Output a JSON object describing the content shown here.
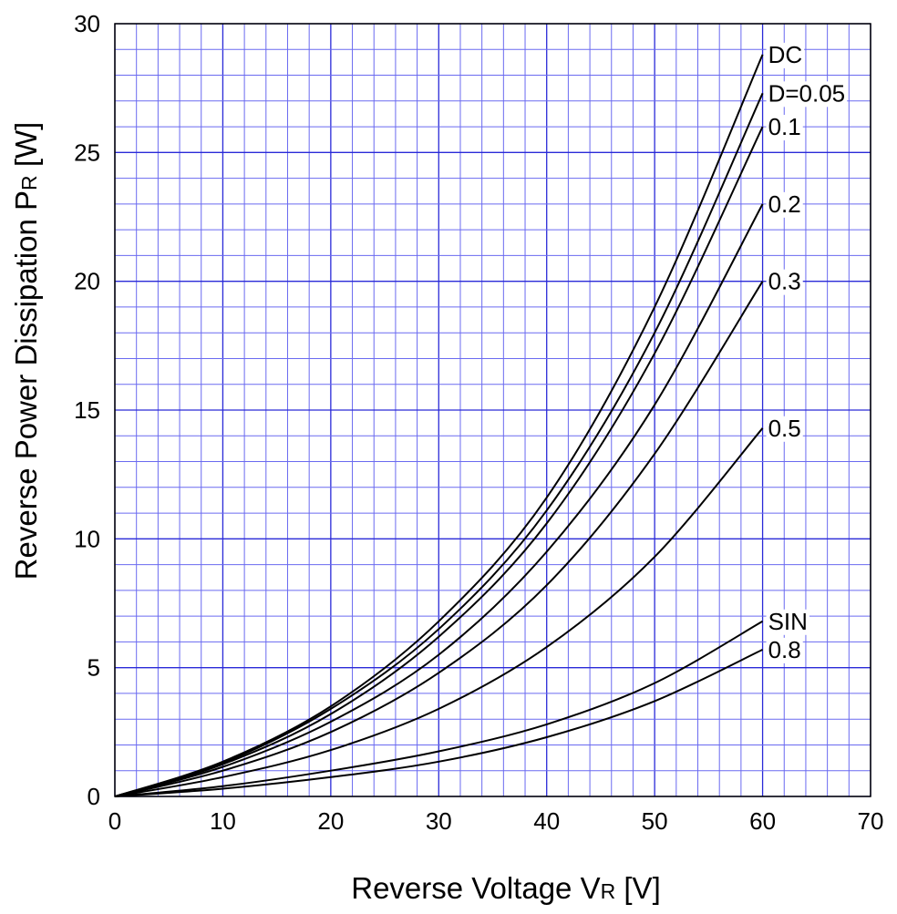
{
  "chart_data": {
    "type": "line",
    "xlabel": "Reverse Voltage",
    "xlabel_symbol": "V",
    "xlabel_sub": "R",
    "xlabel_unit": "[V]",
    "ylabel": "Reverse Power Dissipation",
    "ylabel_symbol": "P",
    "ylabel_sub": "R",
    "ylabel_unit": "[W]",
    "xlim": [
      0,
      70
    ],
    "ylim": [
      0,
      30
    ],
    "x_ticks": [
      "0",
      "10",
      "20",
      "30",
      "40",
      "50",
      "60",
      "70"
    ],
    "y_ticks": [
      "0",
      "5",
      "10",
      "15",
      "20",
      "25",
      "30"
    ],
    "grid": true,
    "x": [
      0,
      10,
      20,
      30,
      40,
      50,
      60
    ],
    "series": [
      {
        "name": "DC",
        "values": [
          0,
          1.35,
          3.5,
          6.8,
          11.6,
          19.0,
          28.8
        ]
      },
      {
        "name": "D=0.05",
        "values": [
          0,
          1.3,
          3.4,
          6.5,
          11.1,
          18.0,
          27.3
        ]
      },
      {
        "name": "0.1",
        "values": [
          0,
          1.25,
          3.2,
          6.2,
          10.6,
          17.2,
          26.0
        ]
      },
      {
        "name": "0.2",
        "values": [
          0,
          1.15,
          2.9,
          5.5,
          9.5,
          15.2,
          23.0
        ]
      },
      {
        "name": "0.3",
        "values": [
          0,
          1.0,
          2.5,
          4.8,
          8.2,
          13.3,
          20.0
        ]
      },
      {
        "name": "0.5",
        "values": [
          0,
          0.75,
          1.8,
          3.4,
          5.8,
          9.3,
          14.3
        ]
      },
      {
        "name": "SIN",
        "values": [
          0,
          0.4,
          1.0,
          1.75,
          2.8,
          4.4,
          6.8
        ]
      },
      {
        "name": "0.8",
        "values": [
          0,
          0.3,
          0.75,
          1.35,
          2.3,
          3.7,
          5.7
        ]
      }
    ]
  }
}
